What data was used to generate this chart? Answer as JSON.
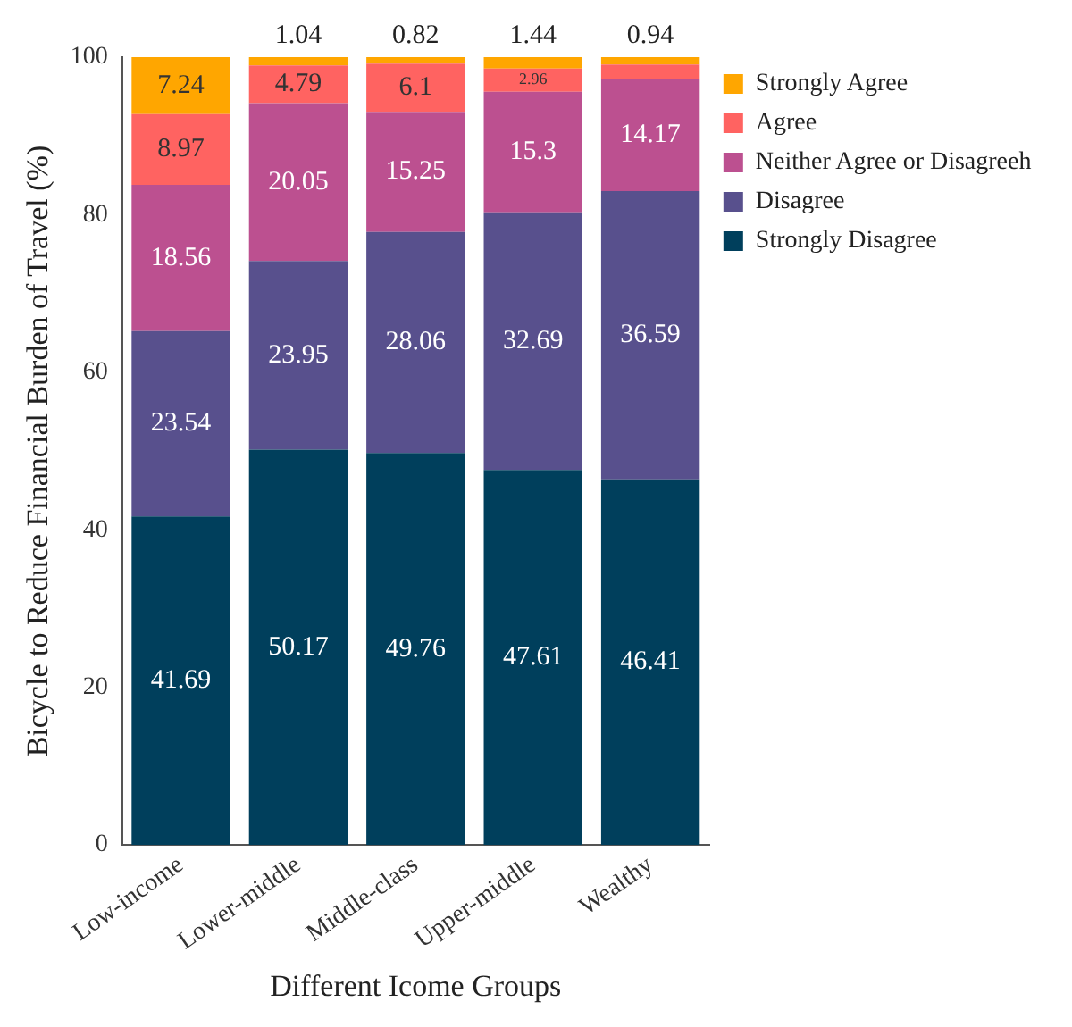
{
  "chart_data": {
    "type": "bar",
    "stacked": true,
    "xlabel": "Different Icome Groups",
    "ylabel": "Bicycle to Reduce Financial Burden of Travel (%)",
    "categories": [
      "Low-income",
      "Lower-middle",
      "Middle-class",
      "Upper-middle",
      "Wealthy"
    ],
    "series": [
      {
        "name": "Strongly Disagree",
        "color": "#003f5c",
        "values": [
          41.69,
          50.17,
          49.76,
          47.61,
          46.41
        ],
        "value_labels": [
          "41.69",
          "50.17",
          "49.76",
          "47.61",
          "46.41"
        ]
      },
      {
        "name": "Disagree",
        "color": "#58508d",
        "values": [
          23.54,
          23.95,
          28.06,
          32.69,
          36.59
        ],
        "value_labels": [
          "23.54",
          "23.95",
          "28.06",
          "32.69",
          "36.59"
        ]
      },
      {
        "name": "Neither Agree or Disagreeh",
        "color": "#bc5090",
        "values": [
          18.56,
          20.05,
          15.25,
          15.3,
          14.17
        ],
        "value_labels": [
          "18.56",
          "20.05",
          "15.25",
          "15.3",
          "14.17"
        ]
      },
      {
        "name": "Agree",
        "color": "#ff6361",
        "values": [
          8.97,
          4.79,
          6.1,
          2.96,
          1.9
        ],
        "value_labels": [
          "8.97",
          "4.79",
          "6.1",
          "2.96",
          null
        ]
      },
      {
        "name": "Strongly Agree",
        "color": "#ffa600",
        "values": [
          7.24,
          1.04,
          0.82,
          1.44,
          0.94
        ],
        "value_labels": [
          "7.24",
          "1.04",
          "0.82",
          "1.44",
          "0.94"
        ]
      }
    ],
    "ylim": [
      0,
      100
    ],
    "yticks": [
      0,
      20,
      40,
      60,
      80,
      100
    ],
    "grid": false,
    "legend": "top right"
  }
}
